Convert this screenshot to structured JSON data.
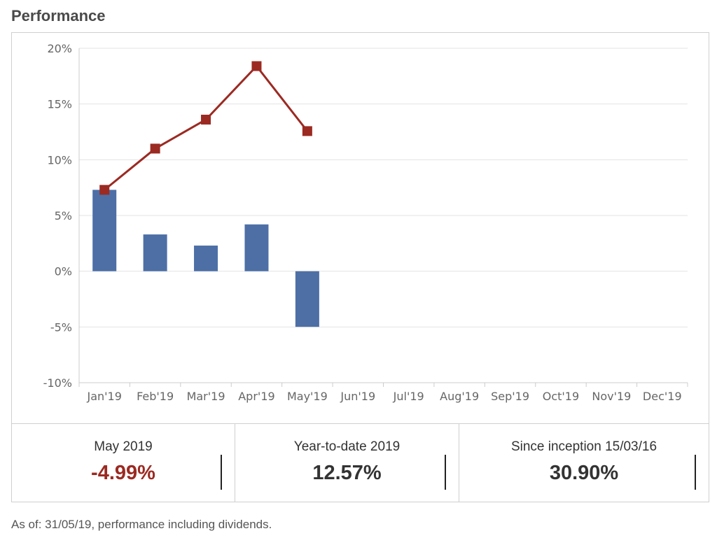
{
  "title": "Performance",
  "chart_data": {
    "type": "bar",
    "categories": [
      "Jan'19",
      "Feb'19",
      "Mar'19",
      "Apr'19",
      "May'19",
      "Jun'19",
      "Jul'19",
      "Aug'19",
      "Sep'19",
      "Oct'19",
      "Nov'19",
      "Dec'19"
    ],
    "series": [
      {
        "type": "bar",
        "values": [
          7.3,
          3.3,
          2.3,
          4.2,
          -4.99,
          null,
          null,
          null,
          null,
          null,
          null,
          null
        ],
        "color": "#4d6fa6"
      },
      {
        "type": "line",
        "values": [
          7.3,
          11.0,
          13.6,
          18.4,
          12.57,
          null,
          null,
          null,
          null,
          null,
          null,
          null
        ],
        "color": "#9b2a22"
      }
    ],
    "ylim": [
      -10,
      20
    ],
    "yticks": [
      20,
      15,
      10,
      5,
      0,
      -5,
      -10
    ],
    "ytick_labels": [
      "20%",
      "15%",
      "10%",
      "5%",
      "0%",
      "-5%",
      "-10%"
    ],
    "grid": true
  },
  "stats": [
    {
      "label": "May 2019",
      "value": "-4.99%",
      "negative": true
    },
    {
      "label": "Year-to-date 2019",
      "value": "12.57%",
      "negative": false
    },
    {
      "label": "Since inception 15/03/16",
      "value": "30.90%",
      "negative": false
    }
  ],
  "footnote": "As of: 31/05/19, performance including dividends."
}
